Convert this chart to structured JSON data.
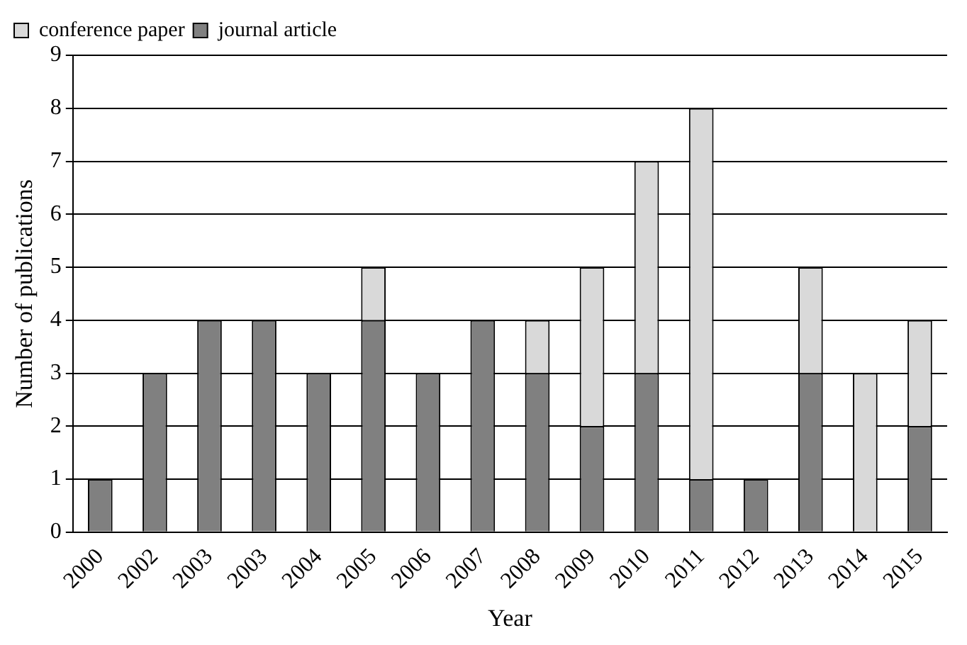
{
  "chart_data": {
    "type": "bar",
    "stacked": true,
    "xlabel": "Year",
    "ylabel": "Number of publications",
    "categories": [
      "2000",
      "2002",
      "2003",
      "2003",
      "2004",
      "2005",
      "2006",
      "2007",
      "2008",
      "2009",
      "2010",
      "2011",
      "2012",
      "2013",
      "2014",
      "2015"
    ],
    "series": [
      {
        "name": "journal article",
        "color": "#808080",
        "values": [
          1,
          3,
          4,
          4,
          3,
          4,
          3,
          4,
          3,
          2,
          3,
          1,
          1,
          3,
          0,
          2
        ]
      },
      {
        "name": "conference paper",
        "color": "#d9d9d9",
        "values": [
          0,
          0,
          0,
          0,
          0,
          1,
          0,
          0,
          1,
          3,
          4,
          7,
          0,
          2,
          3,
          2
        ]
      }
    ],
    "ylim": [
      0,
      9
    ],
    "yticks": [
      0,
      1,
      2,
      3,
      4,
      5,
      6,
      7,
      8,
      9
    ],
    "grid": "y",
    "legend": "top left"
  }
}
